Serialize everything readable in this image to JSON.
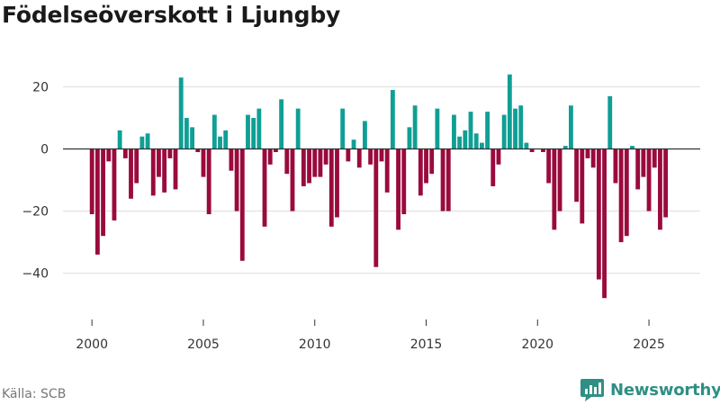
{
  "title": "Födelseöverskott i Ljungby",
  "source": "Källa: SCB",
  "brand": "Newsworthy",
  "colors": {
    "positive": "#0f9f95",
    "negative": "#9a0a3d",
    "grid": "#dddddd",
    "zero_line": "#333333",
    "axis_text": "#333333",
    "brand": "#2f8f84"
  },
  "icons": {
    "logo": "newsworthy-chart-bubble-icon"
  },
  "chart_data": {
    "type": "bar",
    "title": "Födelseöverskott i Ljungby",
    "xlabel": "",
    "ylabel": "",
    "x_ticks": [
      2000,
      2005,
      2010,
      2015,
      2020,
      2025
    ],
    "y_ticks": [
      20,
      0,
      -20,
      -40
    ],
    "y_tick_labels": [
      "20",
      "0",
      "−20",
      "−40"
    ],
    "xlim": [
      1998.7,
      2027.3
    ],
    "ylim": [
      -52,
      30
    ],
    "grid": true,
    "period": "quarterly",
    "series": [
      {
        "name": "Födelseöverskott",
        "start": 2000.0,
        "step": 0.25,
        "values": [
          -21,
          -34,
          -28,
          -4,
          -23,
          6,
          -3,
          -16,
          -11,
          4,
          5,
          -15,
          -9,
          -14,
          -3,
          -13,
          23,
          10,
          7,
          -1,
          -9,
          -21,
          11,
          4,
          6,
          -7,
          -20,
          -36,
          11,
          10,
          13,
          -25,
          -5,
          -1,
          16,
          -8,
          -20,
          13,
          -12,
          -11,
          -9,
          -9,
          -5,
          -25,
          -22,
          13,
          -4,
          3,
          -6,
          9,
          -5,
          -38,
          -4,
          -14,
          19,
          -26,
          -21,
          7,
          14,
          -15,
          -11,
          -8,
          13,
          -20,
          -20,
          11,
          4,
          6,
          12,
          5,
          2,
          12,
          -12,
          -5,
          11,
          24,
          13,
          14,
          2,
          -1,
          0,
          -1,
          -11,
          -26,
          -20,
          1,
          14,
          -17,
          -24,
          -3,
          -6,
          -42,
          -48,
          17,
          -11,
          -30,
          -28,
          1,
          -13,
          -9,
          -20,
          -6,
          -26,
          -22
        ]
      }
    ]
  }
}
